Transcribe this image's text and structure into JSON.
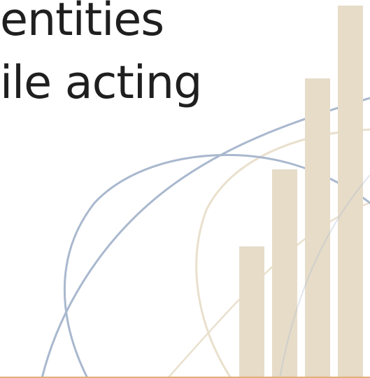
{
  "slide": {
    "text_lines": [
      "entities",
      "ile acting"
    ]
  },
  "decoration": {
    "bar_color": "#e6dcc8",
    "blue_arc_color": "#a9b8ce",
    "beige_arc_color": "#e9e0cd",
    "bottom_rule_color": "#e2b07a"
  }
}
